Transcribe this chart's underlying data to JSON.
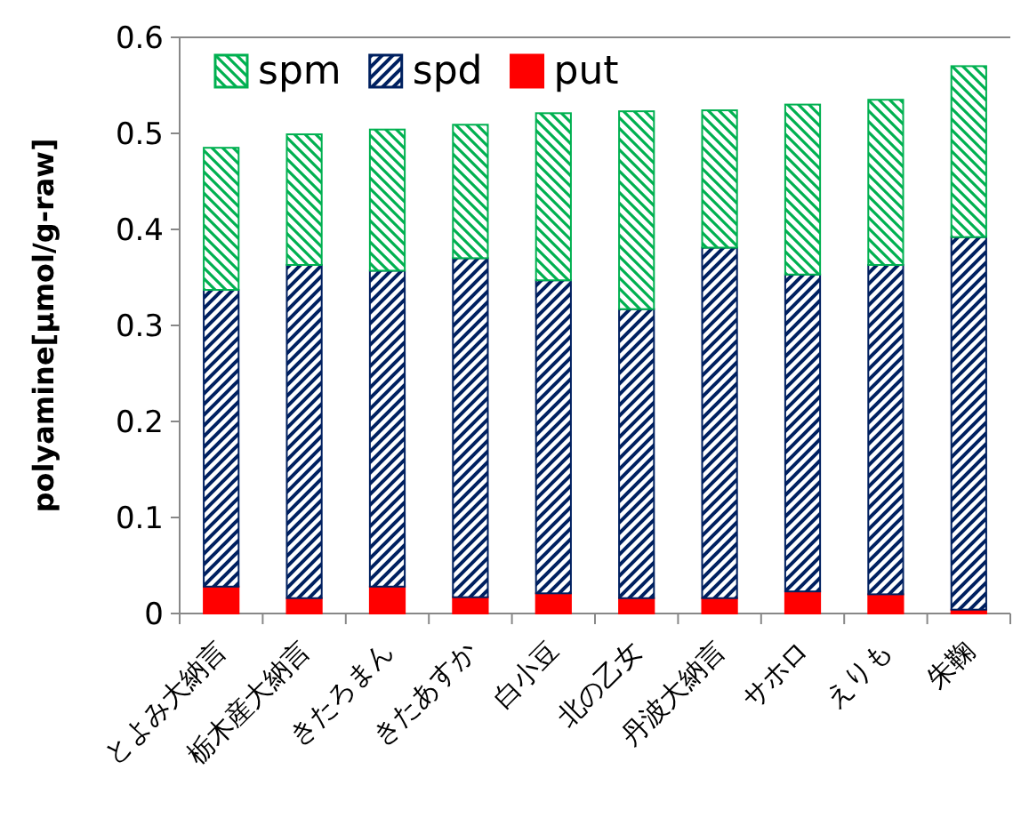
{
  "chart_data": {
    "type": "bar",
    "stacked": true,
    "ylabel": "polyamine[μmol/g-raw]",
    "categories": [
      "とよみ大納言",
      "栃木産大納言",
      "きたろまん",
      "きたあすか",
      "白小豆",
      "北の乙女",
      "丹波大納言",
      "サホロ",
      "えりも",
      "朱鞠"
    ],
    "series": [
      {
        "name": "put",
        "color": "#ff0000",
        "values": [
          0.028,
          0.016,
          0.028,
          0.017,
          0.021,
          0.016,
          0.016,
          0.023,
          0.02,
          0.004
        ]
      },
      {
        "name": "spd",
        "color": "#002060",
        "values": [
          0.309,
          0.347,
          0.329,
          0.353,
          0.326,
          0.301,
          0.365,
          0.33,
          0.343,
          0.388
        ]
      },
      {
        "name": "spm",
        "color": "#00b050",
        "values": [
          0.148,
          0.136,
          0.147,
          0.139,
          0.174,
          0.206,
          0.143,
          0.177,
          0.172,
          0.178
        ]
      }
    ],
    "ylim": [
      0,
      0.6
    ],
    "yticks": [
      0,
      0.1,
      0.2,
      0.3,
      0.4,
      0.5,
      0.6
    ],
    "grid": false,
    "legend": "top left"
  }
}
